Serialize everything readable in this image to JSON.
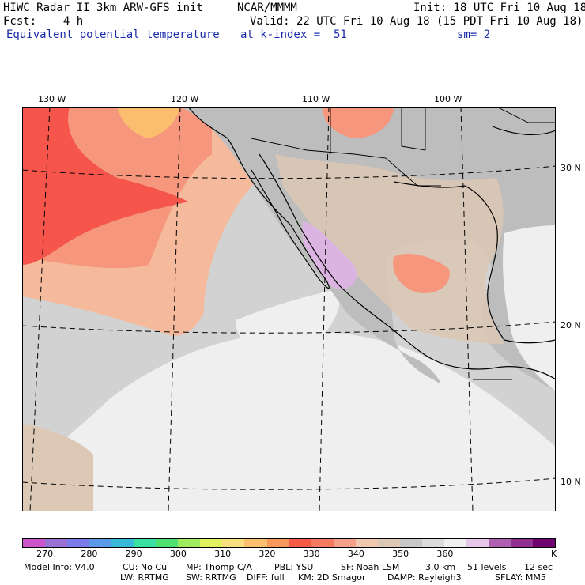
{
  "header": {
    "model_title": "HIWC Radar II 3km ARW-GFS init",
    "org": "NCAR/MMMM",
    "init": "Init: 18 UTC Fri 10 Aug 18",
    "fcst": "Fcst:    4 h",
    "valid": "Valid: 22 UTC Fri 10 Aug 18 (15 PDT Fri 10 Aug 18)",
    "field": "Equivalent potential temperature",
    "level": "at k-index =  51",
    "smooth": "sm= 2"
  },
  "map": {
    "lon_labels": [
      "130 W",
      "120 W",
      "110 W",
      "100 W"
    ],
    "lat_labels": [
      "30 N",
      "20 N",
      "10 N"
    ],
    "colors": {
      "ocean_light": "#efefef",
      "ocean_grey": "#d2d2d2",
      "land_grey": "#bdbdbd",
      "tan": "#dcc8b4",
      "peach": "#f5b99b",
      "salmon": "#f5967d",
      "red": "#f5554b",
      "orange": "#fabe6e",
      "lavender": "#dcb4e1"
    }
  },
  "colorbar": {
    "labels": [
      "270",
      "280",
      "290",
      "300",
      "310",
      "320",
      "330",
      "340",
      "350",
      "360"
    ],
    "unit": "K",
    "colors": [
      "#cc55cc",
      "#9973d2",
      "#7a7ae8",
      "#5a9ae8",
      "#3ab8d8",
      "#3ae0a0",
      "#50e070",
      "#a0ec60",
      "#e0f060",
      "#f8e080",
      "#fac070",
      "#fa9a5a",
      "#f55a46",
      "#f57a60",
      "#f5a088",
      "#f0c8b0",
      "#dcc8b4",
      "#c8c8c8",
      "#dcdcdc",
      "#f0f0f0",
      "#e8c8e8",
      "#b060b0",
      "#903090",
      "#700070"
    ]
  },
  "footer": {
    "line1_a": "Model Info: V4.0",
    "line1_b": "CU: No Cu",
    "line1_c": "MP: Thomp C/A",
    "line1_d": "PBL: YSU",
    "line1_e": "SF: Noah LSM",
    "line1_f": "3.0 km",
    "line1_g": "51 levels",
    "line1_h": "12 sec",
    "line2_a": "LW: RRTMG",
    "line2_b": "SW: RRTMG",
    "line2_c": "DIFF: full",
    "line2_d": "KM: 2D Smagor",
    "line2_e": "DAMP: Rayleigh3",
    "line2_f": "SFLAY: MM5"
  }
}
